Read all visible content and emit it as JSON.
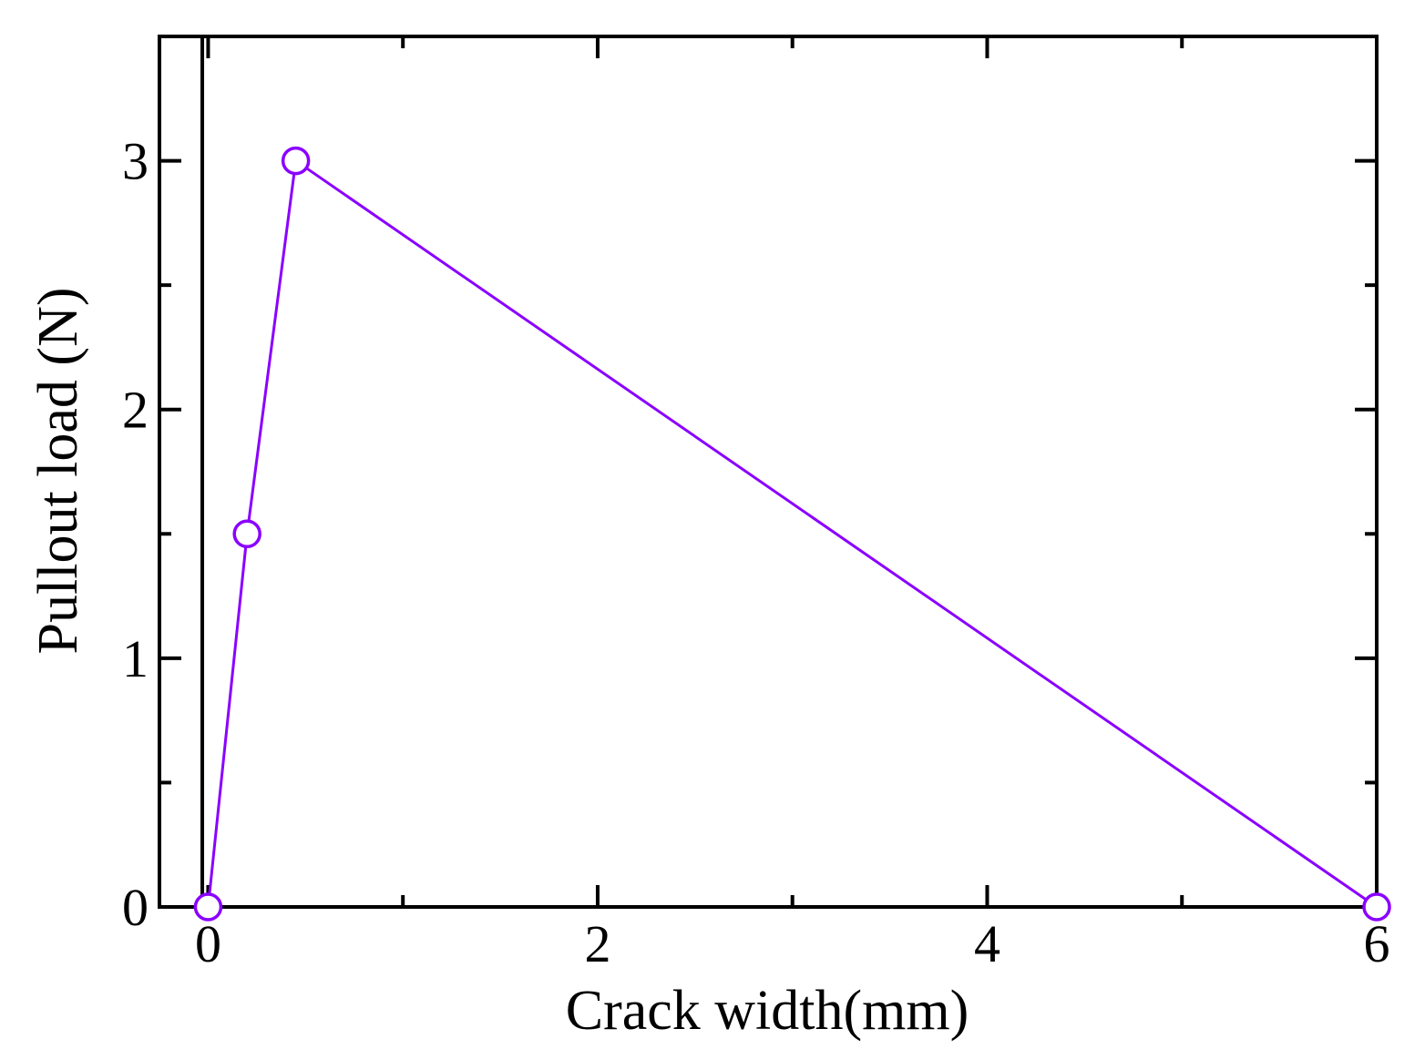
{
  "chart_data": {
    "type": "line",
    "title": "",
    "xlabel": "Crack width(mm)",
    "ylabel": "Pullout load (N)",
    "xlim": [
      -0.25,
      6.0
    ],
    "ylim": [
      0,
      3.5
    ],
    "x_ticks": [
      0,
      2,
      4,
      6
    ],
    "y_ticks": [
      0,
      1,
      2,
      3
    ],
    "x_tick_labels": [
      "0",
      "2",
      "4",
      "6"
    ],
    "y_tick_labels": [
      "0",
      "1",
      "2",
      "3"
    ],
    "x_minor_step": 1,
    "y_minor_step": 0.5,
    "reference_vertical_line_x": -0.03,
    "grid": false,
    "legend": "none",
    "series": [
      {
        "x": [
          0,
          0.2,
          0.45,
          6.0
        ],
        "y": [
          0,
          1.5,
          3.0,
          0
        ],
        "color": "#8a00ff",
        "marker": "open-circle"
      }
    ]
  }
}
